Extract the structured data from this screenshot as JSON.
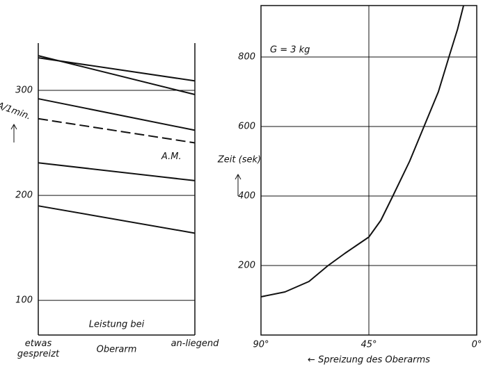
{
  "chart_data": [
    {
      "type": "line",
      "y_label": "A/1min.",
      "x_label": "Oberarm",
      "annotation": "Leistung bei",
      "categories": [
        "etwas gespreizt",
        "an-liegend"
      ],
      "ylim": [
        67,
        345
      ],
      "yticks": [
        100,
        200,
        300
      ],
      "grid": true,
      "color": "#111111",
      "series": [
        {
          "values": [
            331,
            309
          ]
        },
        {
          "values": [
            333,
            296
          ]
        },
        {
          "values": [
            292,
            262
          ]
        },
        {
          "name": "A.M.",
          "dashed": true,
          "values": [
            273,
            250
          ]
        },
        {
          "values": [
            231,
            214
          ]
        },
        {
          "values": [
            190,
            164
          ]
        }
      ]
    },
    {
      "type": "curve",
      "y_label": "Zeit (sek)",
      "x_label": "← Spreizung des Oberarms",
      "annotation": "G = 3 kg",
      "xlim": [
        90,
        0
      ],
      "xticks": [
        {
          "value": 90,
          "label": "90°"
        },
        {
          "value": 45,
          "label": "45°"
        },
        {
          "value": 0,
          "label": "0°"
        }
      ],
      "ylim": [
        0,
        948
      ],
      "yticks": [
        200,
        400,
        600,
        800
      ],
      "grid": true,
      "color": "#111111",
      "x": [
        90,
        80,
        70,
        62,
        55,
        45,
        40,
        35,
        28,
        22,
        16,
        11.6,
        8,
        5.5
      ],
      "values": [
        110,
        124,
        154,
        200,
        235,
        282,
        330,
        400,
        500,
        600,
        700,
        800,
        880,
        948
      ]
    }
  ]
}
